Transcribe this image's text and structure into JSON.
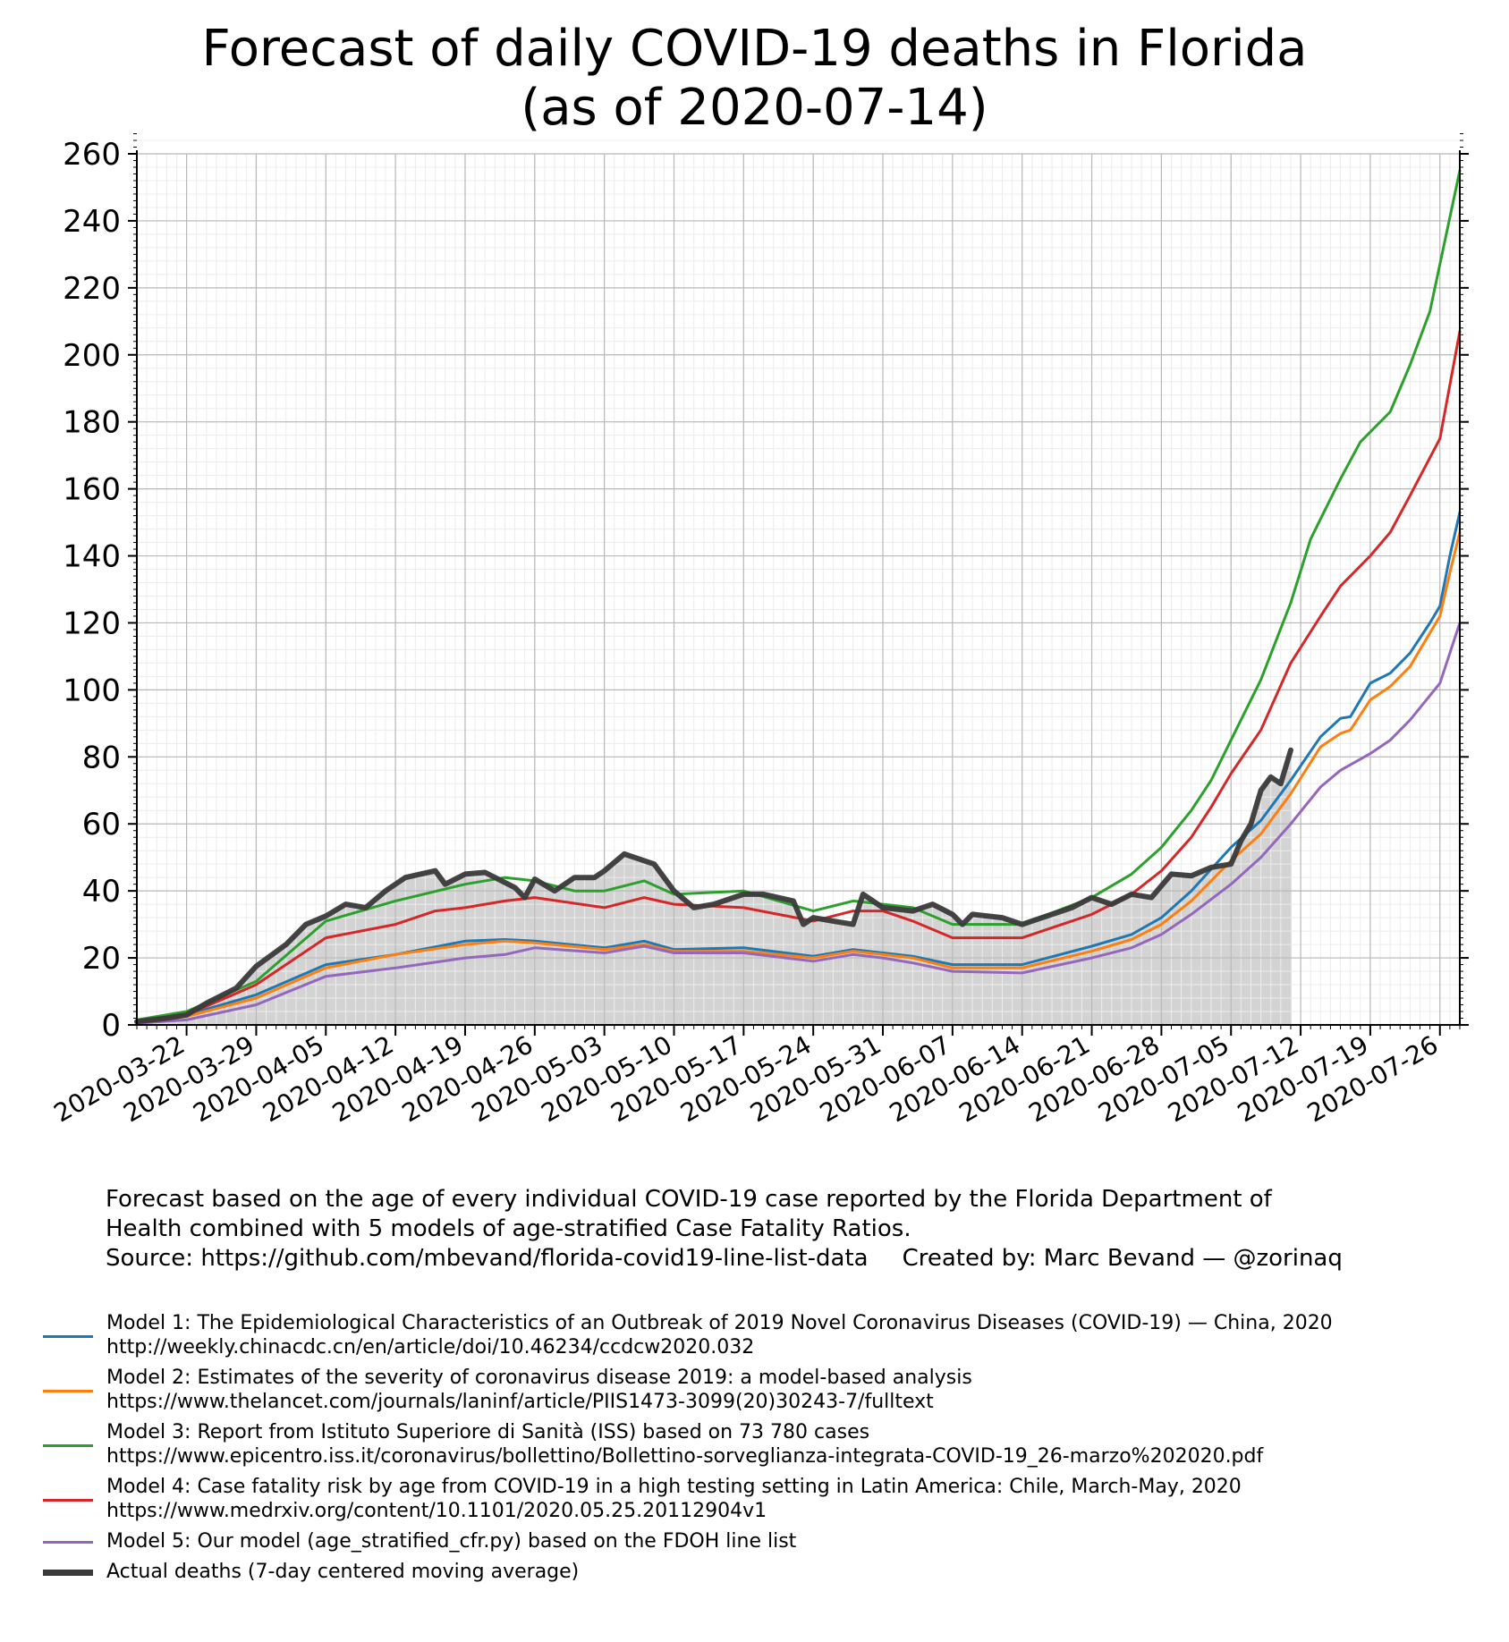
{
  "chart_data": {
    "type": "line",
    "title": "Forecast of daily COVID-19 deaths in Florida",
    "subtitle": "(as of 2020-07-14)",
    "xlabel": "",
    "ylabel": "",
    "x_start": "2020-03-17",
    "x_end": "2020-07-28",
    "x_ticks": [
      "2020-03-22",
      "2020-03-29",
      "2020-04-05",
      "2020-04-12",
      "2020-04-19",
      "2020-04-26",
      "2020-05-03",
      "2020-05-10",
      "2020-05-17",
      "2020-05-24",
      "2020-05-31",
      "2020-06-07",
      "2020-06-14",
      "2020-06-21",
      "2020-06-28",
      "2020-07-05",
      "2020-07-12",
      "2020-07-19",
      "2020-07-26"
    ],
    "y_ticks": [
      0,
      20,
      40,
      60,
      80,
      100,
      120,
      140,
      160,
      180,
      200,
      220,
      240,
      260
    ],
    "ylim": [
      0,
      260
    ],
    "grid": true,
    "colors": {
      "model1": "#1f77b4",
      "model2": "#ff7f0e",
      "model3": "#2ca02c",
      "model4": "#d62728",
      "model5": "#9467bd",
      "actual": "#3a3a3a",
      "fill": "#d3d3d3"
    },
    "series": [
      {
        "key": "model1",
        "points": [
          [
            "2020-03-17",
            1
          ],
          [
            "2020-03-22",
            3
          ],
          [
            "2020-03-29",
            9
          ],
          [
            "2020-04-05",
            18
          ],
          [
            "2020-04-12",
            21
          ],
          [
            "2020-04-19",
            25
          ],
          [
            "2020-04-23",
            25.5
          ],
          [
            "2020-04-26",
            25
          ],
          [
            "2020-05-03",
            23
          ],
          [
            "2020-05-07",
            25
          ],
          [
            "2020-05-10",
            22.5
          ],
          [
            "2020-05-17",
            23
          ],
          [
            "2020-05-24",
            20.5
          ],
          [
            "2020-05-28",
            22.5
          ],
          [
            "2020-05-31",
            21.5
          ],
          [
            "2020-06-03",
            20.5
          ],
          [
            "2020-06-07",
            18
          ],
          [
            "2020-06-14",
            18
          ],
          [
            "2020-06-21",
            23.5
          ],
          [
            "2020-06-25",
            27
          ],
          [
            "2020-06-28",
            32
          ],
          [
            "2020-07-01",
            40
          ],
          [
            "2020-07-05",
            53
          ],
          [
            "2020-07-08",
            61
          ],
          [
            "2020-07-11",
            73
          ],
          [
            "2020-07-14",
            86
          ],
          [
            "2020-07-16",
            91.5
          ],
          [
            "2020-07-17",
            92
          ],
          [
            "2020-07-19",
            102
          ],
          [
            "2020-07-21",
            105
          ],
          [
            "2020-07-23",
            111
          ],
          [
            "2020-07-25",
            120
          ],
          [
            "2020-07-26",
            125
          ],
          [
            "2020-07-27",
            140
          ],
          [
            "2020-07-28",
            153
          ]
        ]
      },
      {
        "key": "model2",
        "points": [
          [
            "2020-03-17",
            1
          ],
          [
            "2020-03-22",
            2.5
          ],
          [
            "2020-03-29",
            8
          ],
          [
            "2020-04-05",
            17
          ],
          [
            "2020-04-12",
            21
          ],
          [
            "2020-04-19",
            24
          ],
          [
            "2020-04-23",
            25
          ],
          [
            "2020-04-26",
            24.5
          ],
          [
            "2020-05-03",
            22.5
          ],
          [
            "2020-05-07",
            24
          ],
          [
            "2020-05-10",
            22
          ],
          [
            "2020-05-17",
            22
          ],
          [
            "2020-05-24",
            20
          ],
          [
            "2020-05-28",
            22
          ],
          [
            "2020-05-31",
            21
          ],
          [
            "2020-06-03",
            20
          ],
          [
            "2020-06-07",
            17
          ],
          [
            "2020-06-14",
            17
          ],
          [
            "2020-06-21",
            22
          ],
          [
            "2020-06-25",
            25.5
          ],
          [
            "2020-06-28",
            30
          ],
          [
            "2020-07-01",
            37
          ],
          [
            "2020-07-05",
            49
          ],
          [
            "2020-07-08",
            57
          ],
          [
            "2020-07-11",
            69
          ],
          [
            "2020-07-14",
            83
          ],
          [
            "2020-07-16",
            87
          ],
          [
            "2020-07-17",
            88
          ],
          [
            "2020-07-19",
            97
          ],
          [
            "2020-07-21",
            101
          ],
          [
            "2020-07-23",
            107
          ],
          [
            "2020-07-25",
            117
          ],
          [
            "2020-07-26",
            122
          ],
          [
            "2020-07-27",
            135
          ],
          [
            "2020-07-28",
            147
          ]
        ]
      },
      {
        "key": "model3",
        "points": [
          [
            "2020-03-17",
            1.5
          ],
          [
            "2020-03-22",
            4
          ],
          [
            "2020-03-29",
            13
          ],
          [
            "2020-04-05",
            31
          ],
          [
            "2020-04-12",
            37
          ],
          [
            "2020-04-19",
            42
          ],
          [
            "2020-04-23",
            44
          ],
          [
            "2020-04-26",
            43
          ],
          [
            "2020-04-30",
            40
          ],
          [
            "2020-05-03",
            40
          ],
          [
            "2020-05-07",
            43
          ],
          [
            "2020-05-10",
            39
          ],
          [
            "2020-05-17",
            40
          ],
          [
            "2020-05-24",
            34
          ],
          [
            "2020-05-28",
            37
          ],
          [
            "2020-05-31",
            36
          ],
          [
            "2020-06-03",
            35
          ],
          [
            "2020-06-07",
            30
          ],
          [
            "2020-06-14",
            30
          ],
          [
            "2020-06-21",
            38
          ],
          [
            "2020-06-25",
            45
          ],
          [
            "2020-06-28",
            53
          ],
          [
            "2020-07-01",
            64
          ],
          [
            "2020-07-03",
            73
          ],
          [
            "2020-07-05",
            85
          ],
          [
            "2020-07-08",
            103
          ],
          [
            "2020-07-11",
            126
          ],
          [
            "2020-07-13",
            145
          ],
          [
            "2020-07-14",
            151
          ],
          [
            "2020-07-16",
            163
          ],
          [
            "2020-07-18",
            174
          ],
          [
            "2020-07-21",
            183
          ],
          [
            "2020-07-23",
            197
          ],
          [
            "2020-07-25",
            213
          ],
          [
            "2020-07-28",
            255
          ]
        ]
      },
      {
        "key": "model4",
        "points": [
          [
            "2020-03-17",
            1
          ],
          [
            "2020-03-22",
            3
          ],
          [
            "2020-03-29",
            12
          ],
          [
            "2020-04-05",
            26
          ],
          [
            "2020-04-12",
            30
          ],
          [
            "2020-04-16",
            34
          ],
          [
            "2020-04-19",
            35
          ],
          [
            "2020-04-23",
            37
          ],
          [
            "2020-04-26",
            38
          ],
          [
            "2020-05-03",
            35
          ],
          [
            "2020-05-07",
            38
          ],
          [
            "2020-05-10",
            36
          ],
          [
            "2020-05-17",
            35
          ],
          [
            "2020-05-24",
            31
          ],
          [
            "2020-05-28",
            34
          ],
          [
            "2020-05-31",
            34
          ],
          [
            "2020-06-03",
            31
          ],
          [
            "2020-06-07",
            26
          ],
          [
            "2020-06-14",
            26
          ],
          [
            "2020-06-21",
            33
          ],
          [
            "2020-06-25",
            39
          ],
          [
            "2020-06-28",
            46
          ],
          [
            "2020-07-01",
            56
          ],
          [
            "2020-07-03",
            65
          ],
          [
            "2020-07-05",
            75
          ],
          [
            "2020-07-08",
            88
          ],
          [
            "2020-07-11",
            108
          ],
          [
            "2020-07-14",
            122
          ],
          [
            "2020-07-16",
            131
          ],
          [
            "2020-07-19",
            140
          ],
          [
            "2020-07-21",
            147
          ],
          [
            "2020-07-23",
            158
          ],
          [
            "2020-07-26",
            175
          ],
          [
            "2020-07-28",
            207
          ]
        ]
      },
      {
        "key": "model5",
        "points": [
          [
            "2020-03-17",
            0.5
          ],
          [
            "2020-03-22",
            1.5
          ],
          [
            "2020-03-29",
            6
          ],
          [
            "2020-04-05",
            14.5
          ],
          [
            "2020-04-12",
            17
          ],
          [
            "2020-04-19",
            20
          ],
          [
            "2020-04-23",
            21
          ],
          [
            "2020-04-26",
            23
          ],
          [
            "2020-05-03",
            21.5
          ],
          [
            "2020-05-07",
            23.5
          ],
          [
            "2020-05-10",
            21.5
          ],
          [
            "2020-05-17",
            21.5
          ],
          [
            "2020-05-24",
            19
          ],
          [
            "2020-05-28",
            21
          ],
          [
            "2020-05-31",
            20
          ],
          [
            "2020-06-03",
            18.5
          ],
          [
            "2020-06-07",
            16
          ],
          [
            "2020-06-14",
            15.5
          ],
          [
            "2020-06-21",
            20
          ],
          [
            "2020-06-25",
            23
          ],
          [
            "2020-06-28",
            27
          ],
          [
            "2020-07-01",
            33
          ],
          [
            "2020-07-05",
            42
          ],
          [
            "2020-07-08",
            50
          ],
          [
            "2020-07-11",
            60
          ],
          [
            "2020-07-14",
            71
          ],
          [
            "2020-07-16",
            76
          ],
          [
            "2020-07-19",
            81
          ],
          [
            "2020-07-21",
            85
          ],
          [
            "2020-07-23",
            91
          ],
          [
            "2020-07-26",
            102
          ],
          [
            "2020-07-28",
            120
          ]
        ]
      },
      {
        "key": "actual",
        "points": [
          [
            "2020-03-17",
            1
          ],
          [
            "2020-03-20",
            2
          ],
          [
            "2020-03-22",
            3
          ],
          [
            "2020-03-24",
            6.5
          ],
          [
            "2020-03-27",
            11
          ],
          [
            "2020-03-29",
            17.5
          ],
          [
            "2020-04-01",
            24
          ],
          [
            "2020-04-03",
            30
          ],
          [
            "2020-04-05",
            32.5
          ],
          [
            "2020-04-07",
            36
          ],
          [
            "2020-04-09",
            35
          ],
          [
            "2020-04-11",
            40
          ],
          [
            "2020-04-13",
            44
          ],
          [
            "2020-04-16",
            46
          ],
          [
            "2020-04-17",
            42
          ],
          [
            "2020-04-19",
            45
          ],
          [
            "2020-04-21",
            45.5
          ],
          [
            "2020-04-24",
            41
          ],
          [
            "2020-04-25",
            38
          ],
          [
            "2020-04-26",
            43.5
          ],
          [
            "2020-04-28",
            40
          ],
          [
            "2020-04-30",
            44
          ],
          [
            "2020-05-02",
            44
          ],
          [
            "2020-05-03",
            46
          ],
          [
            "2020-05-05",
            51
          ],
          [
            "2020-05-08",
            48
          ],
          [
            "2020-05-10",
            40
          ],
          [
            "2020-05-12",
            35
          ],
          [
            "2020-05-14",
            36
          ],
          [
            "2020-05-17",
            39
          ],
          [
            "2020-05-19",
            39
          ],
          [
            "2020-05-22",
            37
          ],
          [
            "2020-05-23",
            30
          ],
          [
            "2020-05-24",
            32
          ],
          [
            "2020-05-26",
            31
          ],
          [
            "2020-05-28",
            30
          ],
          [
            "2020-05-29",
            39
          ],
          [
            "2020-05-31",
            35
          ],
          [
            "2020-06-03",
            34
          ],
          [
            "2020-06-05",
            36
          ],
          [
            "2020-06-07",
            33
          ],
          [
            "2020-06-08",
            30
          ],
          [
            "2020-06-09",
            33
          ],
          [
            "2020-06-12",
            32
          ],
          [
            "2020-06-14",
            30
          ],
          [
            "2020-06-16",
            32
          ],
          [
            "2020-06-19",
            35
          ],
          [
            "2020-06-21",
            38
          ],
          [
            "2020-06-23",
            36
          ],
          [
            "2020-06-25",
            39
          ],
          [
            "2020-06-27",
            38
          ],
          [
            "2020-06-29",
            45
          ],
          [
            "2020-07-01",
            44.5
          ],
          [
            "2020-07-03",
            47
          ],
          [
            "2020-07-05",
            48
          ],
          [
            "2020-07-06",
            55
          ],
          [
            "2020-07-07",
            60
          ],
          [
            "2020-07-08",
            70
          ],
          [
            "2020-07-09",
            74
          ],
          [
            "2020-07-10",
            72
          ],
          [
            "2020-07-11",
            82
          ]
        ]
      }
    ]
  },
  "caption": {
    "line1": "Forecast based on the age of every individual COVID-19 case reported by the Florida Department of",
    "line2": "Health combined with 5 models of age-stratified Case Fatality Ratios.",
    "source": "Source: https://github.com/mbevand/florida-covid19-line-list-data",
    "credit": "Created by: Marc Bevand — @zorinaq"
  },
  "legend": [
    {
      "key": "model1",
      "label": "Model 1: The Epidemiological Characteristics of an Outbreak of 2019 Novel Coronavirus Diseases (COVID-19) — China, 2020",
      "url": "http://weekly.chinacdc.cn/en/article/doi/10.46234/ccdcw2020.032"
    },
    {
      "key": "model2",
      "label": "Model 2: Estimates of the severity of coronavirus disease 2019: a model-based analysis",
      "url": "https://www.thelancet.com/journals/laninf/article/PIIS1473-3099(20)30243-7/fulltext"
    },
    {
      "key": "model3",
      "label": "Model 3: Report from Istituto Superiore di Sanità (ISS) based on 73 780 cases",
      "url": "https://www.epicentro.iss.it/coronavirus/bollettino/Bollettino-sorveglianza-integrata-COVID-19_26-marzo%202020.pdf"
    },
    {
      "key": "model4",
      "label": "Model 4: Case fatality risk by age from COVID-19 in a high testing setting in Latin America: Chile, March-May, 2020",
      "url": "https://www.medrxiv.org/content/10.1101/2020.05.25.20112904v1"
    },
    {
      "key": "model5",
      "label": "Model 5: Our model (age_stratified_cfr.py) based on the FDOH line list",
      "url": ""
    },
    {
      "key": "actual",
      "label": "Actual deaths (7-day centered moving average)",
      "url": ""
    }
  ]
}
